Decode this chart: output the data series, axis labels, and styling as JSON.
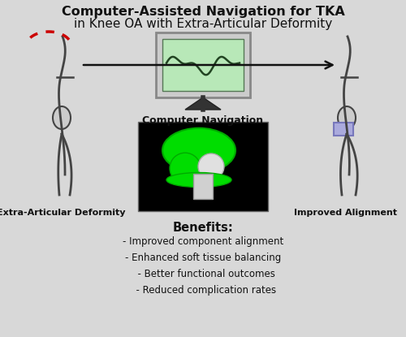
{
  "title_line1": "Computer-Assisted Navigation for TKA",
  "title_line2": "in Knee OA with Extra-Articular Deformity",
  "title_fontsize": 11.5,
  "background_color": "#d8d8d8",
  "left_label": "Extra-Articular Deformity",
  "right_label": "Improved Alignment",
  "center_label": "Computer Navigation",
  "benefits_title": "Benefits:",
  "benefits": [
    "- Improved component alignment",
    "- Enhanced soft tissue balancing",
    "  - Better functional outcomes",
    "  - Reduced complication rates"
  ],
  "arrow_color": "#111111",
  "monitor_screen_color": "#b8e8b8",
  "body_color": "#444444",
  "deformity_color": "#cc0000",
  "implant_bg": "#000000",
  "implant_green": "#00dd00",
  "align_rect_color": "#aaaadd"
}
